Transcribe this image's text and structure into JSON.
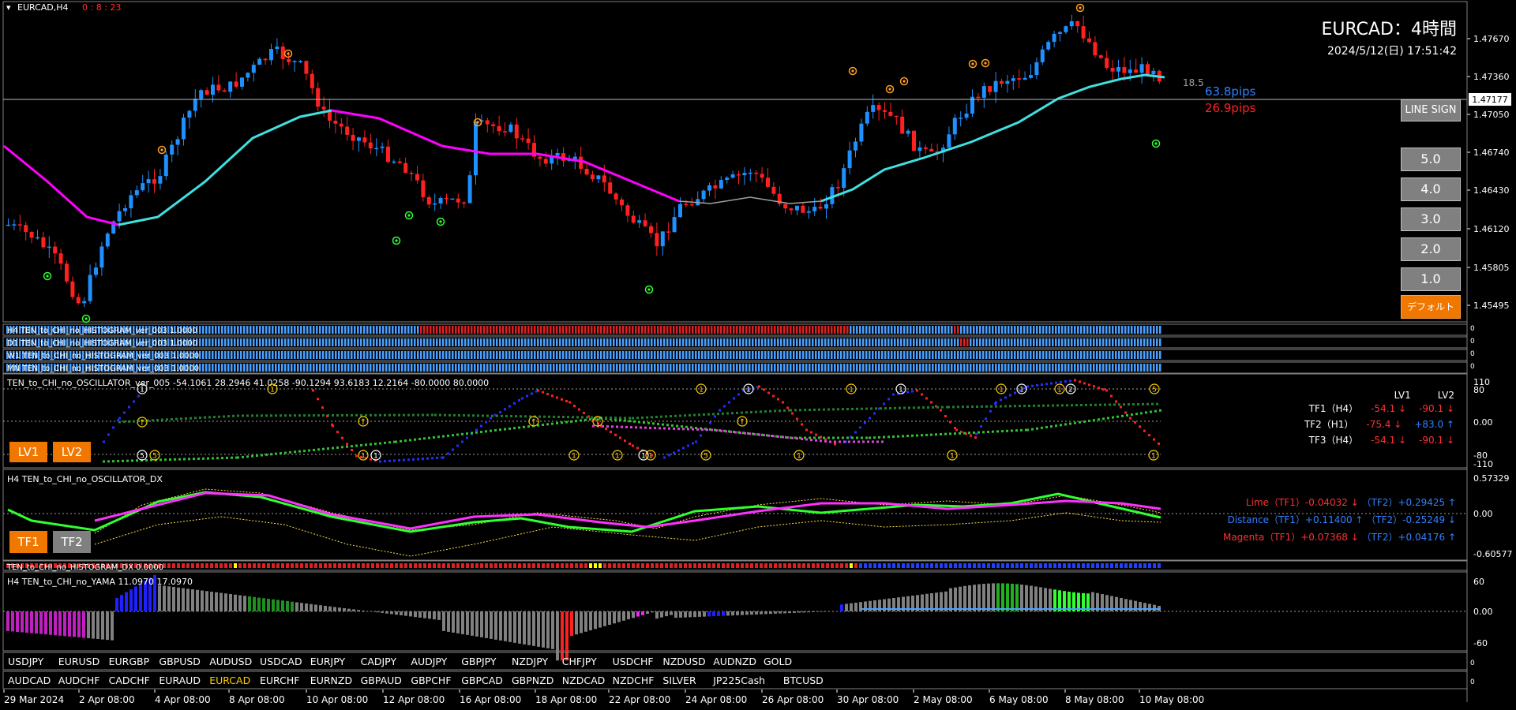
{
  "chart": {
    "symbol_label": "EURCAD,H4",
    "countdown": "0 : 8 : 23",
    "title": "EURCAD：4時間",
    "datetime": "2024/5/12(日) 17:51:42",
    "current_price": "1.47177",
    "price_ticks": [
      "1.47670",
      "1.47360",
      "1.47050",
      "1.46740",
      "1.46430",
      "1.46120",
      "1.45805",
      "1.45495"
    ],
    "spread_label": "18.5",
    "pips_up": "63.8pips",
    "pips_down": "26.9pips",
    "colors": {
      "bull": "#1e90ff",
      "bear": "#ff2020",
      "ma_up": "#40e0e0",
      "ma_down": "#ff00ff",
      "ma_gray": "#a0a0a0"
    }
  },
  "right_panel": {
    "line_sign": "LINE SIGN",
    "levels": [
      "5.0",
      "4.0",
      "3.0",
      "2.0",
      "1.0"
    ],
    "default": "デフォルト"
  },
  "histograms": {
    "h4": "H4 TEN_to_CHI_no_HISTOGRAM_ver_003 1.0000",
    "d1": "D1 TEN_to_CHI_no_HISTOGRAM_ver_003 1.0000",
    "w1": "W1 TEN_to_CHI_no_HISTOGRAM_ver_003 1.0000",
    "mn": "MN TEN_to_CHI_no_HISTOGRAM_ver_003 1.0000"
  },
  "oscillator": {
    "label": "TEN_to_CHI_no_OSCILLATOR_ver_005 -54.1061 28.2946 41.0258 -90.1294 93.6183 12.2164 -80.0000 80.0000",
    "ticks": [
      "110",
      "80",
      "0.00",
      "-80",
      "-110"
    ],
    "lv1": "LV1",
    "lv2": "LV2",
    "table": {
      "col1": "LV1",
      "col2": "LV2",
      "rows": [
        {
          "tf": "TF1（H4）",
          "v1": "-54.1 ↓",
          "v2": "-90.1 ↓",
          "c1": "#ff3030",
          "c2": "#ff3030"
        },
        {
          "tf": "TF2（H1）",
          "v1": "-75.4 ↓",
          "v2": "+83.0 ↑",
          "c1": "#ff3030",
          "c2": "#3080ff"
        },
        {
          "tf": "TF3（H4）",
          "v1": "-54.1 ↓",
          "v2": "-90.1 ↓",
          "c1": "#ff3030",
          "c2": "#ff3030"
        }
      ]
    }
  },
  "dx": {
    "label": "H4 TEN_to_CHI_no_OSCILLATOR_DX",
    "ticks": [
      "0.57329",
      "0.00",
      "-0.60577"
    ],
    "tf1": "TF1",
    "tf2": "TF2",
    "rows": [
      {
        "name": "Lime",
        "a": "（TF1）-0.04032 ↓",
        "b": "（TF2）+0.29425 ↑",
        "c": "#ff3030"
      },
      {
        "name": "Distance",
        "a": "（TF1）+0.11400 ↑",
        "b": "（TF2）-0.25249 ↓",
        "c": "#3080ff"
      },
      {
        "name": "Magenta",
        "a": "（TF1）+0.07368 ↓",
        "b": "（TF2）+0.04176 ↑",
        "c": "#ff3030"
      }
    ]
  },
  "hist_dx": {
    "label": "TEN_to_CHI_no_HISTOGRAM_DX 0.0000"
  },
  "yama": {
    "label": "H4  TEN_to_CHI_no_YAMA 11.0970 17.0970",
    "ticks": [
      "60",
      "0.00",
      "-60"
    ]
  },
  "symbols_row1": [
    "USDJPY",
    "EURUSD",
    "EURGBP",
    "GBPUSD",
    "AUDUSD",
    "USDCAD",
    "EURJPY",
    "CADJPY",
    "AUDJPY",
    "GBPJPY",
    "NZDJPY",
    "CHFJPY",
    "USDCHF",
    "NZDUSD",
    "AUDNZD",
    "GOLD"
  ],
  "symbols_row2": [
    "AUDCAD",
    "AUDCHF",
    "CADCHF",
    "EURAUD",
    "EURCAD",
    "EURCHF",
    "EURNZD",
    "GBPAUD",
    "GBPCHF",
    "GBPCAD",
    "GBPNZD",
    "NZDCAD",
    "NZDCHF",
    "SILVER",
    "JP225Cash",
    "BTCUSD"
  ],
  "active_symbol": "EURCAD",
  "time_axis": [
    "29 Mar 2024",
    "2 Apr 08:00",
    "4 Apr 08:00",
    "8 Apr 08:00",
    "10 Apr 08:00",
    "12 Apr 08:00",
    "16 Apr 08:00",
    "18 Apr 08:00",
    "22 Apr 08:00",
    "24 Apr 08:00",
    "26 Apr 08:00",
    "30 Apr 08:00",
    "2 May 08:00",
    "6 May 08:00",
    "8 May 08:00",
    "10 May 08:00"
  ]
}
